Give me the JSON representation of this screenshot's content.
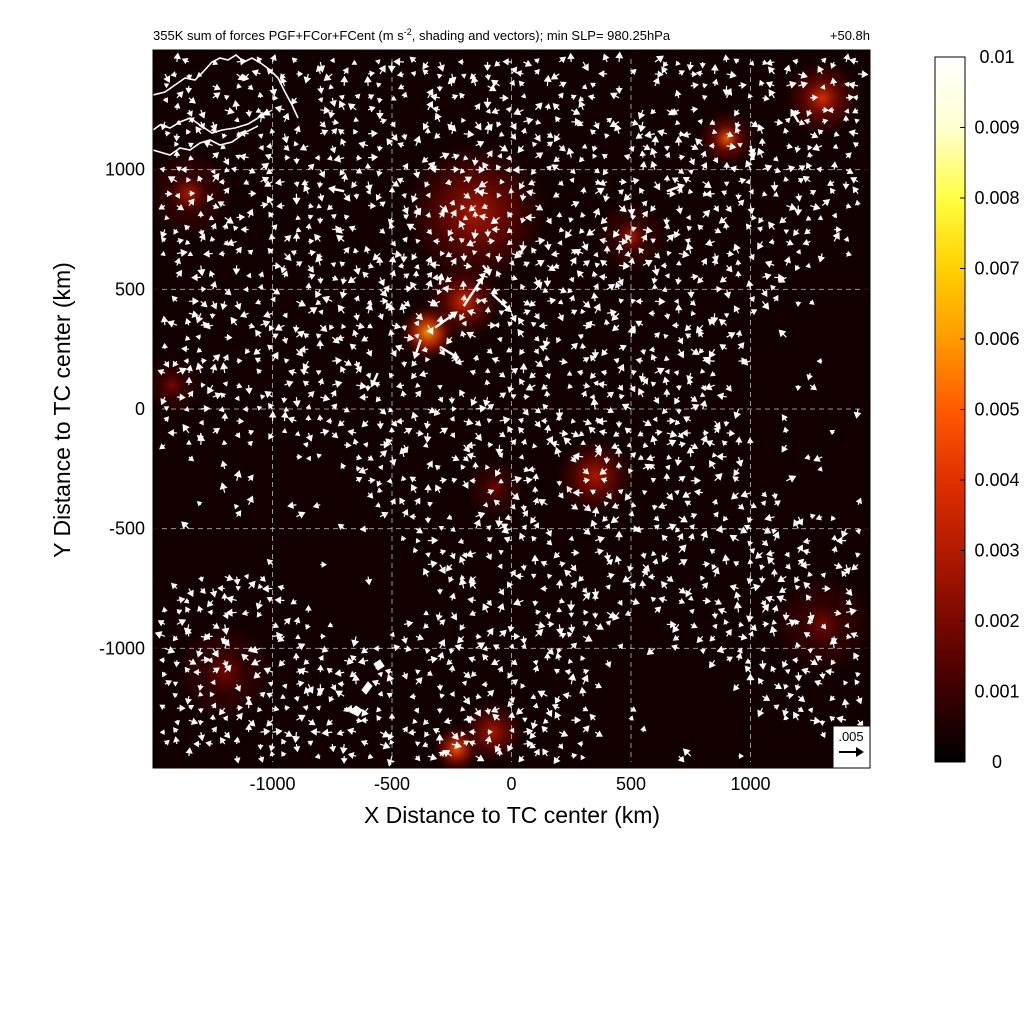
{
  "chart_data": {
    "type": "heatmap",
    "title": "355K sum of forces PGF+FCor+FCent (m s",
    "title_sup": "-2",
    "title_tail": ", shading and vectors); min SLP= 980.25hPa",
    "time_label": "+50.8h",
    "xlabel": "X Distance to TC center (km)",
    "ylabel": "Y Distance to TC center (km)",
    "xlim": [
      -1500,
      1500
    ],
    "ylim": [
      -1500,
      1500
    ],
    "x_ticks": [
      -1000,
      -500,
      0,
      500,
      1000
    ],
    "x_tick_labels": [
      "-1000",
      "-500",
      "0",
      "500",
      "1000"
    ],
    "y_ticks": [
      1000,
      500,
      0,
      -500,
      -1000
    ],
    "y_tick_labels": [
      "1000",
      "500",
      "0",
      "-500",
      "-1000"
    ],
    "grid": true,
    "colorbar": {
      "min": 0,
      "max": 0.01,
      "ticks": [
        0.01,
        0.009,
        0.008,
        0.007,
        0.006,
        0.005,
        0.004,
        0.003,
        0.002,
        0.001,
        0
      ],
      "tick_labels": [
        "0.01",
        "0.009",
        "0.008",
        "0.007",
        "0.006",
        "0.005",
        "0.004",
        "0.003",
        "0.002",
        "0.001",
        "0"
      ],
      "colors": [
        "#000000",
        "#3a0000",
        "#7a0800",
        "#b31a00",
        "#e03000",
        "#ff5a00",
        "#ff9a00",
        "#ffd000",
        "#ffff40",
        "#ffffd0",
        "#ffffff"
      ]
    },
    "reference_vector": {
      "label": ".005",
      "value": 0.005
    },
    "hotspots": [
      {
        "x": -350,
        "y": 320,
        "intensity": 0.0065,
        "radius": 120
      },
      {
        "x": -200,
        "y": 450,
        "intensity": 0.004,
        "radius": 160
      },
      {
        "x": -150,
        "y": 820,
        "intensity": 0.003,
        "radius": 300
      },
      {
        "x": 900,
        "y": 1130,
        "intensity": 0.0045,
        "radius": 120
      },
      {
        "x": 1300,
        "y": 1300,
        "intensity": 0.0035,
        "radius": 160
      },
      {
        "x": 500,
        "y": 720,
        "intensity": 0.0025,
        "radius": 150
      },
      {
        "x": -1350,
        "y": 900,
        "intensity": 0.0025,
        "radius": 180
      },
      {
        "x": -230,
        "y": -1420,
        "intensity": 0.005,
        "radius": 100
      },
      {
        "x": -80,
        "y": -1350,
        "intensity": 0.003,
        "radius": 130
      },
      {
        "x": 350,
        "y": -280,
        "intensity": 0.003,
        "radius": 160
      },
      {
        "x": -70,
        "y": -330,
        "intensity": 0.002,
        "radius": 120
      },
      {
        "x": 1300,
        "y": -900,
        "intensity": 0.002,
        "radius": 200
      },
      {
        "x": -1200,
        "y": -1100,
        "intensity": 0.0018,
        "radius": 200
      },
      {
        "x": -1420,
        "y": 100,
        "intensity": 0.0015,
        "radius": 120
      }
    ],
    "vectors": [
      {
        "x": -320,
        "y": 340,
        "u": 3.5,
        "v": 2.5
      },
      {
        "x": -200,
        "y": 430,
        "u": 3.0,
        "v": 4.5
      },
      {
        "x": -80,
        "y": 480,
        "u": 3.0,
        "v": -2.8
      },
      {
        "x": -380,
        "y": 290,
        "u": -1.0,
        "v": -3.0
      },
      {
        "x": -300,
        "y": 260,
        "u": 3.0,
        "v": -1.8
      },
      {
        "x": -560,
        "y": 150,
        "u": -1.0,
        "v": -2.2
      },
      {
        "x": -700,
        "y": 910,
        "u": -2.5,
        "v": 0.5
      },
      {
        "x": 650,
        "y": 910,
        "u": 2.8,
        "v": 1.0
      },
      {
        "x": 1000,
        "y": 1100,
        "u": 0.5,
        "v": -2.2
      },
      {
        "x": 1200,
        "y": 1200,
        "u": -1.2,
        "v": 2.0
      },
      {
        "x": -300,
        "y": 520,
        "u": 0.3,
        "v": 1.8
      },
      {
        "x": -120,
        "y": 600,
        "u": 1.2,
        "v": -1.4
      }
    ]
  },
  "colors": {
    "axis": "#000000",
    "grid": "#bbbbbb",
    "vector": "#ffffff",
    "coastline": "#ffffff"
  }
}
